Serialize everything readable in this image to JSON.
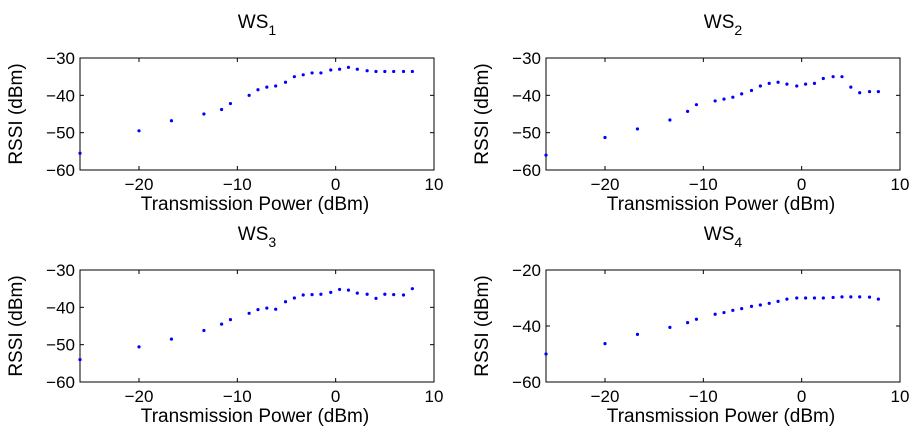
{
  "figure": {
    "marker_color": "#0000ff"
  },
  "chart_data": [
    {
      "type": "scatter",
      "title": "WS",
      "title_subscript": "1",
      "xlabel": "Transmission Power (dBm)",
      "ylabel": "RSSI (dBm)",
      "xlim": [
        -26,
        10
      ],
      "ylim": [
        -60,
        -30
      ],
      "xticks": [
        "−20",
        "−10",
        "0",
        "10"
      ],
      "yticks": [
        "−30",
        "−40",
        "−50",
        "−60"
      ],
      "x": [
        -26,
        -20,
        -16.7,
        -13.4,
        -11.6,
        -10.7,
        -8.8,
        -7.9,
        -7,
        -6.1,
        -5.1,
        -4.2,
        -3.3,
        -2.4,
        -1.5,
        -0.5,
        0.4,
        1.3,
        2.2,
        3.2,
        4.1,
        5,
        5.9,
        6.9,
        7.8
      ],
      "y": [
        -55.5,
        -49.5,
        -46.8,
        -45,
        -43.8,
        -42.2,
        -40,
        -38.5,
        -37.8,
        -37.5,
        -36.5,
        -35,
        -34.5,
        -34,
        -34,
        -33.2,
        -33,
        -32.5,
        -33,
        -33.4,
        -33.6,
        -33.6,
        -33.6,
        -33.6,
        -33.6
      ]
    },
    {
      "type": "scatter",
      "title": "WS",
      "title_subscript": "2",
      "xlabel": "Transmission Power (dBm)",
      "ylabel": "RSSI (dBm)",
      "xlim": [
        -26,
        10
      ],
      "ylim": [
        -60,
        -30
      ],
      "xticks": [
        "−20",
        "−10",
        "0",
        "10"
      ],
      "yticks": [
        "−30",
        "−40",
        "−50",
        "−60"
      ],
      "x": [
        -26,
        -20,
        -16.7,
        -13.4,
        -11.6,
        -10.7,
        -8.8,
        -7.9,
        -7,
        -6.1,
        -5.1,
        -4.2,
        -3.3,
        -2.4,
        -1.5,
        -0.5,
        0.4,
        1.3,
        2.2,
        3.2,
        4.1,
        5,
        5.9,
        6.9,
        7.8
      ],
      "y": [
        -56,
        -51.3,
        -49,
        -46.6,
        -44.3,
        -42.5,
        -41.5,
        -41,
        -40.5,
        -39.6,
        -38.7,
        -37.5,
        -36.8,
        -36.5,
        -37,
        -37.5,
        -37,
        -36.8,
        -35.5,
        -35,
        -35,
        -37.8,
        -39.3,
        -39,
        -39
      ]
    },
    {
      "type": "scatter",
      "title": "WS",
      "title_subscript": "3",
      "xlabel": "Transmission Power (dBm)",
      "ylabel": "RSSI (dBm)",
      "xlim": [
        -26,
        10
      ],
      "ylim": [
        -60,
        -30
      ],
      "xticks": [
        "−20",
        "−10",
        "0",
        "10"
      ],
      "yticks": [
        "−30",
        "−40",
        "−50",
        "−60"
      ],
      "x": [
        -26,
        -20,
        -16.7,
        -13.4,
        -11.6,
        -10.7,
        -8.8,
        -7.9,
        -7,
        -6.1,
        -5.1,
        -4.2,
        -3.3,
        -2.4,
        -1.5,
        -0.5,
        0.4,
        1.3,
        2.2,
        3.2,
        4.1,
        5,
        5.9,
        6.9,
        7.8
      ],
      "y": [
        -54,
        -50.6,
        -48.5,
        -46.2,
        -44.5,
        -43.3,
        -41.6,
        -40.6,
        -40.2,
        -40.5,
        -38.5,
        -37.5,
        -36.7,
        -36.6,
        -36.5,
        -36,
        -35.2,
        -35.4,
        -36.2,
        -36.5,
        -37.6,
        -36.5,
        -36.6,
        -36.7,
        -35
      ]
    },
    {
      "type": "scatter",
      "title": "WS",
      "title_subscript": "4",
      "xlabel": "Transmission Power (dBm)",
      "ylabel": "RSSI (dBm)",
      "xlim": [
        -26,
        10
      ],
      "ylim": [
        -60,
        -20
      ],
      "xticks": [
        "−20",
        "−10",
        "0",
        "10"
      ],
      "yticks": [
        "−20",
        "−40",
        "−60"
      ],
      "x": [
        -26,
        -20,
        -16.7,
        -13.4,
        -11.6,
        -10.7,
        -8.8,
        -7.9,
        -7,
        -6.1,
        -5.1,
        -4.2,
        -3.3,
        -2.4,
        -1.5,
        -0.5,
        0.4,
        1.3,
        2.2,
        3.2,
        4.1,
        5,
        5.9,
        6.9,
        7.8
      ],
      "y": [
        -50,
        -46.3,
        -43,
        -40.5,
        -38.8,
        -37.6,
        -35.8,
        -35.2,
        -34.4,
        -33.8,
        -33,
        -32.5,
        -31.9,
        -31.2,
        -30.4,
        -30,
        -30,
        -30,
        -30,
        -29.8,
        -29.6,
        -29.6,
        -29.6,
        -29.7,
        -30.4
      ]
    }
  ]
}
